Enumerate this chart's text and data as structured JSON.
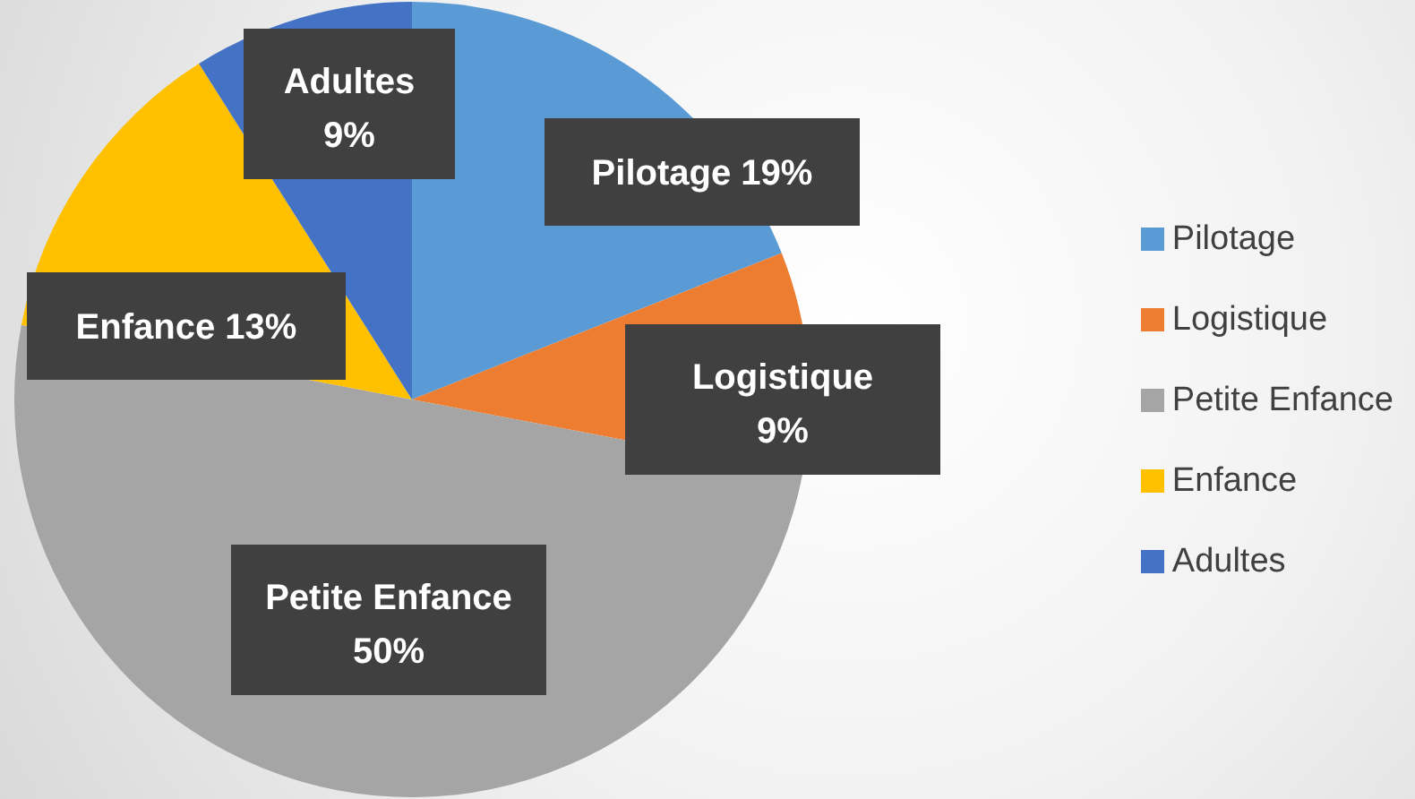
{
  "chart_data": {
    "type": "pie",
    "categories": [
      "Pilotage",
      "Logistique",
      "Petite Enfance",
      "Enfance",
      "Adultes"
    ],
    "values": [
      19,
      9,
      50,
      13,
      9
    ],
    "colors": [
      "#5b9bd5",
      "#ed7d31",
      "#a5a5a5",
      "#ffc000",
      "#4472c4"
    ],
    "value_labels": [
      "19%",
      "9%",
      "50%",
      "13%",
      "9%"
    ],
    "legend": "right"
  }
}
